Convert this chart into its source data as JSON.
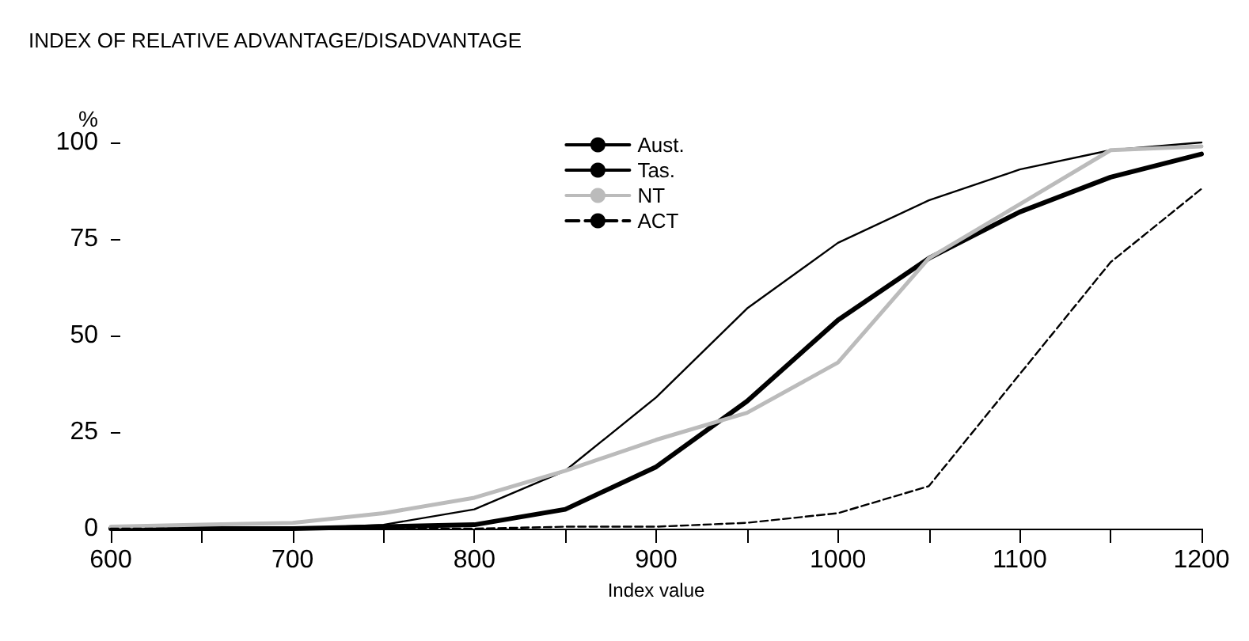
{
  "chart_data": {
    "type": "line",
    "title": "INDEX OF RELATIVE ADVANTAGE/DISADVANTAGE",
    "xlabel": "Index value",
    "ylabel": "%",
    "x": [
      600,
      650,
      700,
      750,
      800,
      850,
      900,
      950,
      1000,
      1050,
      1100,
      1150,
      1200
    ],
    "xlim": [
      600,
      1200
    ],
    "xticks": [
      600,
      {
        "value": 650,
        "label": null
      },
      700,
      {
        "value": 750,
        "label": null
      },
      800,
      {
        "value": 850,
        "label": null
      },
      900,
      {
        "value": 950,
        "label": null
      },
      1000,
      {
        "value": 1050,
        "label": null
      },
      1100,
      {
        "value": 1150,
        "label": null
      },
      1200
    ],
    "ylim": [
      0,
      100
    ],
    "yticks": [
      0,
      25,
      50,
      75,
      100
    ],
    "grid": false,
    "legend": "top",
    "marker": "none",
    "series": [
      {
        "name": "Aust.",
        "color": "#000000",
        "line_style": "solid",
        "values": [
          0,
          0,
          0,
          0.5,
          1,
          5,
          16,
          33,
          54,
          70,
          82,
          91,
          97
        ]
      },
      {
        "name": "Tas.",
        "color": "#000000",
        "line_style": "solid",
        "values": [
          0,
          0,
          0,
          1,
          5,
          15,
          34,
          57,
          74,
          85,
          93,
          98,
          100
        ]
      },
      {
        "name": "NT",
        "color": "#bbbbbb",
        "line_style": "solid",
        "values": [
          0.5,
          1,
          1.5,
          4,
          8,
          15,
          23,
          30,
          43,
          70,
          84,
          98,
          99
        ]
      },
      {
        "name": "ACT",
        "color": "#000000",
        "line_style": "dashed",
        "values": [
          0,
          0,
          0,
          0,
          0,
          0.5,
          0.5,
          1.5,
          4,
          11,
          40,
          69,
          88
        ]
      }
    ]
  }
}
